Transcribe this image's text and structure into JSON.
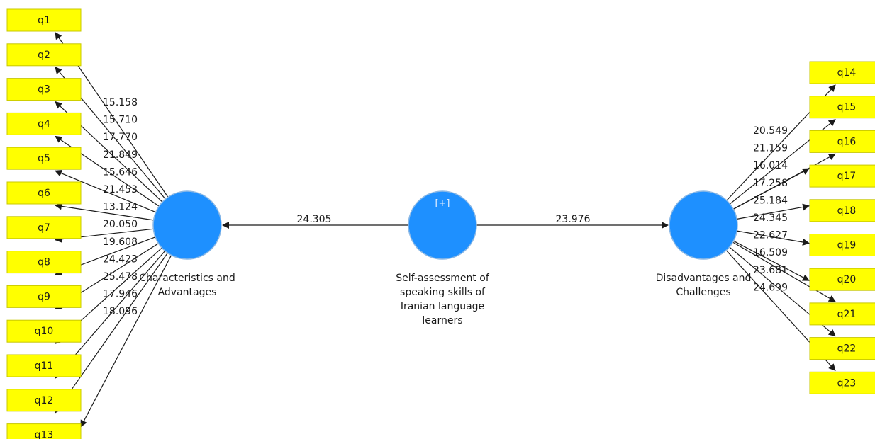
{
  "colors": {
    "indicator_fill": "#ffff00",
    "indicator_stroke": "#c8c800",
    "construct_fill": "#1e90ff",
    "construct_stroke": "#8ab8e6",
    "line": "#1a1a1a",
    "text": "#1a1a1a",
    "badge_text": "#e6f0ff"
  },
  "constructs": {
    "left": {
      "name": "Characteristics and Advantages",
      "lines": [
        "Characteristics and",
        "Advantages"
      ]
    },
    "center": {
      "name": "Self-assessment of speaking skills of Iranian language learners",
      "badge": "[+]",
      "lines": [
        "Self-assessment of",
        "speaking skills of",
        "Iranian language",
        "learners"
      ]
    },
    "right": {
      "name": "Disadvantages and Challenges",
      "lines": [
        "Disadvantages and",
        "Challenges"
      ]
    }
  },
  "paths": [
    {
      "from": "center",
      "to": "left",
      "value": "24.305"
    },
    {
      "from": "center",
      "to": "right",
      "value": "23.976"
    }
  ],
  "indicators_left": [
    {
      "label": "q1",
      "value": ""
    },
    {
      "label": "q2",
      "value": "15.158"
    },
    {
      "label": "q3",
      "value": "15.710"
    },
    {
      "label": "q4",
      "value": "17.770"
    },
    {
      "label": "q5",
      "value": "21.849"
    },
    {
      "label": "q6",
      "value": "15.646"
    },
    {
      "label": "q7",
      "value": "21.453"
    },
    {
      "label": "q8",
      "value": "13.124"
    },
    {
      "label": "q9",
      "value": "20.050"
    },
    {
      "label": "q10",
      "value": "19.608"
    },
    {
      "label": "q11",
      "value": "24.423"
    },
    {
      "label": "q12",
      "value": "25.478"
    },
    {
      "label": "q13",
      "value": "17.946"
    }
  ],
  "left_extra_value": "18.096",
  "indicators_right": [
    {
      "label": "q14",
      "value": "20.549"
    },
    {
      "label": "q15",
      "value": "21.159"
    },
    {
      "label": "q16",
      "value": "16.014"
    },
    {
      "label": "q17",
      "value": "17.258"
    },
    {
      "label": "q18",
      "value": "25.184"
    },
    {
      "label": "q19",
      "value": "24.345"
    },
    {
      "label": "q20",
      "value": "22.627"
    },
    {
      "label": "q21",
      "value": "16.509"
    },
    {
      "label": "q22",
      "value": "23.681"
    },
    {
      "label": "q23",
      "value": "24.699"
    }
  ]
}
